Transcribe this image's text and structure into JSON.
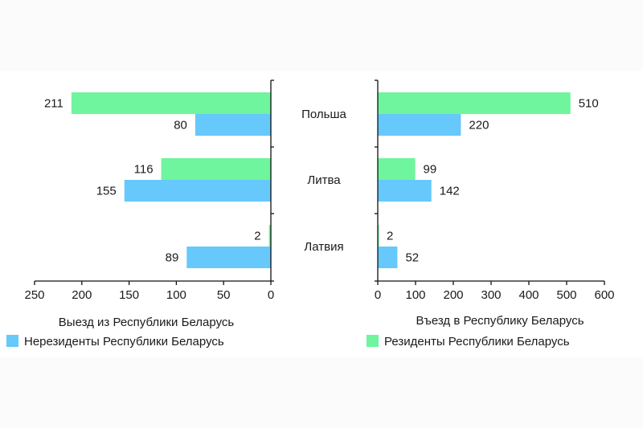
{
  "chart_data": [
    {
      "type": "bar",
      "orientation": "horizontal",
      "direction": "reversed",
      "xlabel": "Выезд из Республики Беларусь",
      "xlim": [
        0,
        250
      ],
      "xticks": [
        250,
        200,
        150,
        100,
        50,
        0
      ],
      "categories": [
        "Польша",
        "Литва",
        "Латвия"
      ],
      "series": [
        {
          "name": "Резиденты Республики Беларусь",
          "color": "#6ef59d",
          "values": [
            211,
            116,
            2
          ]
        },
        {
          "name": "Нерезиденты Республики Беларусь",
          "color": "#66c8fb",
          "values": [
            80,
            155,
            89
          ]
        }
      ]
    },
    {
      "type": "bar",
      "orientation": "horizontal",
      "xlabel": "Въезд в Республику Беларусь",
      "xlim": [
        0,
        600
      ],
      "xticks": [
        0,
        100,
        200,
        300,
        400,
        500,
        600
      ],
      "categories": [
        "Польша",
        "Литва",
        "Латвия"
      ],
      "series": [
        {
          "name": "Резиденты Республики Беларусь",
          "color": "#6ef59d",
          "values": [
            510,
            99,
            2
          ]
        },
        {
          "name": "Нерезиденты Республики Беларусь",
          "color": "#66c8fb",
          "values": [
            220,
            142,
            52
          ]
        }
      ]
    }
  ],
  "legend": [
    {
      "label": "Нерезиденты Республики Беларусь",
      "color": "#66c8fb"
    },
    {
      "label": "Резиденты Республики Беларусь",
      "color": "#6ef59d"
    }
  ]
}
